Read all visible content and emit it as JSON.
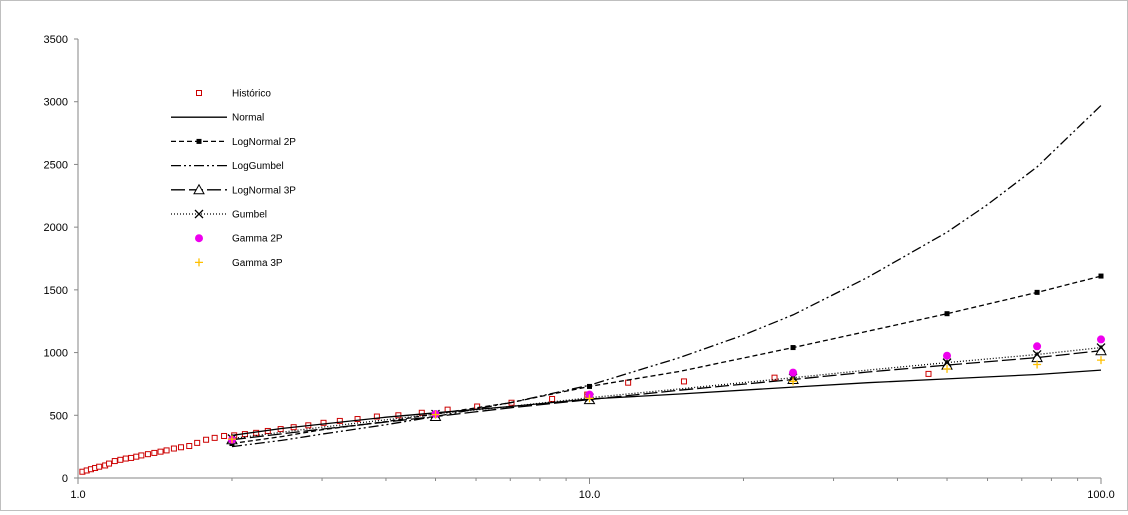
{
  "chart_data": {
    "type": "scatter",
    "x_scale": "log",
    "xlim": [
      1.0,
      100.0
    ],
    "ylim": [
      0,
      3500
    ],
    "x_ticks": [
      1.0,
      10.0,
      100.0
    ],
    "x_tick_labels": [
      "1.0",
      "10.0",
      "100.0"
    ],
    "y_ticks": [
      0,
      500,
      1000,
      1500,
      2000,
      2500,
      3000,
      3500
    ],
    "y_tick_labels": [
      "0",
      "500",
      "1000",
      "1500",
      "2000",
      "2500",
      "3000",
      "3500"
    ],
    "grid": false,
    "legend_position": "top-left",
    "series": [
      {
        "name": "Histórico",
        "style": "marker-only",
        "marker": "square-open",
        "color": "#cc0000",
        "x": [
          1.02,
          1.04,
          1.06,
          1.08,
          1.1,
          1.13,
          1.15,
          1.18,
          1.21,
          1.24,
          1.27,
          1.3,
          1.33,
          1.37,
          1.41,
          1.45,
          1.49,
          1.54,
          1.59,
          1.65,
          1.71,
          1.78,
          1.85,
          1.93,
          2.02,
          2.12,
          2.23,
          2.35,
          2.49,
          2.64,
          2.82,
          3.02,
          3.25,
          3.52,
          3.84,
          4.23,
          4.7,
          5.28,
          6.03,
          7.04,
          8.45,
          9.9,
          11.9,
          15.3,
          23.0,
          46.0
        ],
        "y": [
          50,
          60,
          70,
          80,
          90,
          100,
          115,
          135,
          145,
          155,
          160,
          170,
          180,
          190,
          200,
          210,
          220,
          235,
          245,
          255,
          280,
          305,
          320,
          335,
          340,
          350,
          360,
          375,
          390,
          405,
          420,
          440,
          455,
          470,
          490,
          500,
          520,
          545,
          570,
          600,
          630,
          665,
          760,
          770,
          800,
          830
        ]
      },
      {
        "name": "Normal",
        "style": "line",
        "dash": "",
        "color": "#000000",
        "x": [
          2,
          2.5,
          3,
          4,
          5,
          7,
          10,
          15,
          25,
          35,
          50,
          75,
          100
        ],
        "y": [
          340,
          395,
          430,
          485,
          520,
          570,
          630,
          670,
          725,
          760,
          790,
          825,
          860
        ]
      },
      {
        "name": "LogNormal 2P",
        "style": "line-marker",
        "dash": "5,3",
        "marker": "square",
        "color": "#000000",
        "x": [
          2,
          2.5,
          3,
          4,
          5,
          7,
          10,
          15,
          25,
          35,
          50,
          75,
          100
        ],
        "y": [
          275,
          330,
          385,
          450,
          510,
          600,
          730,
          850,
          1040,
          1170,
          1310,
          1480,
          1610
        ],
        "marker_x": [
          2,
          5,
          10,
          25,
          50,
          75,
          100
        ],
        "marker_y": [
          275,
          510,
          730,
          1040,
          1310,
          1480,
          1610
        ]
      },
      {
        "name": "LogGumbel",
        "style": "line",
        "dash": "10,3,2,3,2,3",
        "color": "#000000",
        "x": [
          2,
          2.5,
          3,
          4,
          5,
          7,
          10,
          15,
          20,
          25,
          35,
          50,
          60,
          75,
          100
        ],
        "y": [
          250,
          300,
          350,
          425,
          490,
          600,
          740,
          960,
          1140,
          1300,
          1600,
          1960,
          2180,
          2480,
          2970
        ]
      },
      {
        "name": "LogNormal 3P",
        "style": "line-marker",
        "dash": "14,4",
        "marker": "triangle-open",
        "color": "#000000",
        "x": [
          2,
          3,
          5,
          7,
          10,
          15,
          25,
          35,
          50,
          75,
          100
        ],
        "y": [
          305,
          390,
          490,
          560,
          625,
          700,
          785,
          845,
          900,
          960,
          1015
        ],
        "marker_x": [
          2,
          5,
          10,
          25,
          50,
          75,
          100
        ],
        "marker_y": [
          305,
          490,
          625,
          785,
          900,
          960,
          1015
        ]
      },
      {
        "name": "Gumbel",
        "style": "line-marker",
        "dash": "1,2",
        "marker": "x",
        "color": "#000000",
        "x": [
          2,
          3,
          5,
          7,
          10,
          15,
          25,
          35,
          50,
          75,
          100
        ],
        "y": [
          315,
          405,
          510,
          570,
          640,
          710,
          800,
          860,
          920,
          985,
          1040
        ],
        "marker_x": [
          2,
          5,
          10,
          25,
          50,
          75,
          100
        ],
        "marker_y": [
          315,
          510,
          640,
          800,
          920,
          985,
          1040
        ]
      },
      {
        "name": "Gamma 2P",
        "style": "marker-only",
        "marker": "circle",
        "color": "#ee00ee",
        "x": [
          2,
          5,
          10,
          25,
          50,
          75,
          100
        ],
        "y": [
          305,
          510,
          665,
          840,
          975,
          1050,
          1105
        ]
      },
      {
        "name": "Gamma 3P",
        "style": "marker-only",
        "marker": "plus",
        "color": "#ffc000",
        "x": [
          2,
          5,
          10,
          25,
          50,
          75,
          100
        ],
        "y": [
          310,
          505,
          635,
          770,
          870,
          905,
          940
        ]
      }
    ]
  }
}
